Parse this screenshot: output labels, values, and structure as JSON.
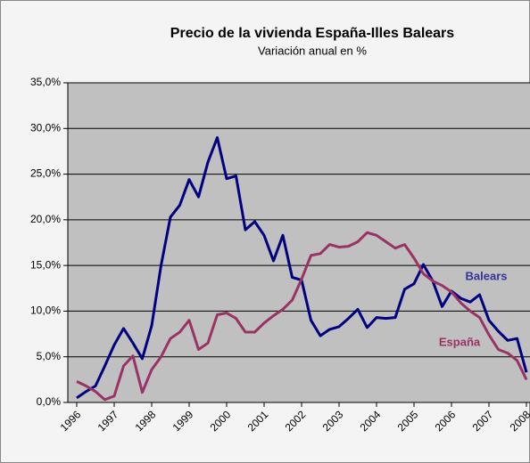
{
  "chart_data": {
    "type": "line",
    "title": "Precio de la vivienda  España-Illes Balears",
    "subtitle": "Variación anual en %",
    "categories": [
      "1996",
      null,
      null,
      null,
      "1997",
      null,
      null,
      null,
      "1998",
      null,
      null,
      null,
      "1999",
      null,
      null,
      null,
      "2000",
      null,
      null,
      null,
      "2001",
      null,
      null,
      null,
      "2002",
      null,
      null,
      null,
      "2003",
      null,
      null,
      null,
      "2004",
      null,
      null,
      null,
      "2005",
      null,
      null,
      null,
      "2006",
      null,
      null,
      null,
      "2007",
      null,
      null,
      null,
      "2008"
    ],
    "series": [
      {
        "name": "Balears",
        "color": "#000080",
        "label_color": "#333399",
        "values": [
          0.5,
          1.2,
          1.8,
          4.0,
          6.3,
          8.1,
          6.5,
          4.8,
          8.4,
          15.0,
          20.3,
          21.6,
          24.4,
          22.5,
          26.3,
          29.0,
          24.5,
          24.8,
          18.9,
          19.8,
          18.3,
          15.5,
          18.3,
          13.7,
          13.4,
          9.0,
          7.3,
          8.0,
          8.3,
          9.2,
          10.2,
          8.2,
          9.3,
          9.2,
          9.3,
          12.4,
          13.0,
          15.1,
          13.3,
          10.5,
          12.2,
          11.4,
          11.0,
          11.8,
          9.0,
          7.8,
          6.8,
          7.0,
          3.3
        ]
      },
      {
        "name": "España",
        "color": "#993366",
        "label_color": "#993366",
        "values": [
          2.3,
          1.8,
          1.2,
          0.3,
          0.7,
          4.0,
          5.1,
          1.1,
          3.6,
          5.0,
          7.0,
          7.7,
          9.0,
          5.8,
          6.5,
          9.6,
          9.8,
          9.2,
          7.7,
          7.7,
          8.7,
          9.5,
          10.2,
          11.2,
          13.5,
          16.1,
          16.3,
          17.3,
          17.0,
          17.1,
          17.6,
          18.6,
          18.3,
          17.6,
          16.9,
          17.3,
          15.8,
          14.1,
          13.3,
          12.8,
          12.1,
          10.9,
          10.0,
          9.3,
          7.4,
          5.8,
          5.4,
          4.6,
          2.5
        ]
      }
    ],
    "ylim": [
      0,
      35
    ],
    "yticks": [
      {
        "value": 0,
        "label": "0,0%"
      },
      {
        "value": 5,
        "label": "5,0%"
      },
      {
        "value": 10,
        "label": "10,0%"
      },
      {
        "value": 15,
        "label": "15,0%"
      },
      {
        "value": 20,
        "label": "20,0%"
      },
      {
        "value": 25,
        "label": "25,0%"
      },
      {
        "value": 30,
        "label": "30,0%"
      },
      {
        "value": 35,
        "label": "35,0%"
      }
    ],
    "grid": true,
    "plot_background": "#c0c0c0"
  }
}
